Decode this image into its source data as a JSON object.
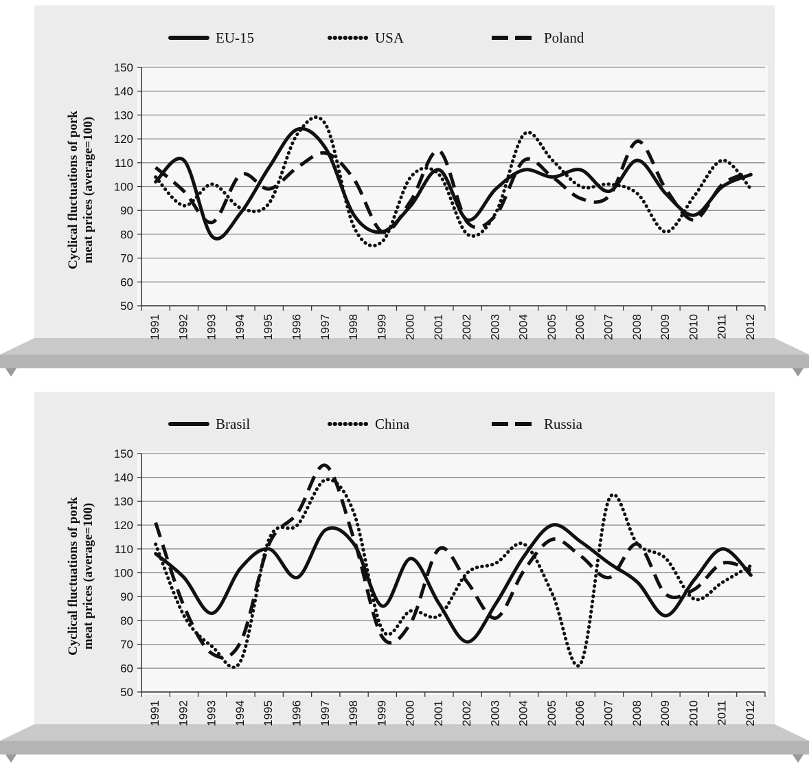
{
  "chart_data": [
    {
      "type": "line",
      "title": "",
      "xlabel": "",
      "ylabel": [
        "Cyclical fluctuations of pork",
        "meat prices (average=100)"
      ],
      "ylim": [
        50,
        150
      ],
      "yticks": [
        50,
        60,
        70,
        80,
        90,
        100,
        110,
        120,
        130,
        140,
        150
      ],
      "x": [
        "1991",
        "1992",
        "1993",
        "1994",
        "1995",
        "1996",
        "1997",
        "1998",
        "1999",
        "2000",
        "2001",
        "2002",
        "2003",
        "2004",
        "2005",
        "2006",
        "2007",
        "2008",
        "2009",
        "2010",
        "2011",
        "2012"
      ],
      "grid": true,
      "legend_position": "top",
      "series": [
        {
          "name": "EU-15",
          "style": "solid",
          "values": [
            102,
            111,
            79,
            89,
            108,
            124,
            116,
            88,
            81,
            92,
            107,
            86,
            99,
            107,
            104,
            107,
            98,
            111,
            97,
            88,
            100,
            105
          ]
        },
        {
          "name": "USA",
          "style": "dotted",
          "values": [
            104,
            92,
            101,
            91,
            93,
            122,
            126,
            83,
            77,
            104,
            105,
            80,
            89,
            122,
            111,
            100,
            101,
            97,
            81,
            96,
            111,
            99
          ]
        },
        {
          "name": "Poland",
          "style": "dashed",
          "values": [
            108,
            98,
            85,
            105,
            99,
            108,
            114,
            103,
            81,
            94,
            115,
            85,
            88,
            111,
            104,
            95,
            96,
            119,
            99,
            86,
            101,
            106
          ]
        }
      ]
    },
    {
      "type": "line",
      "title": "",
      "xlabel": "",
      "ylabel": [
        "Cyclical fluctuations of pork",
        "meat prices (average=100)"
      ],
      "ylim": [
        50,
        150
      ],
      "yticks": [
        50,
        60,
        70,
        80,
        90,
        100,
        110,
        120,
        130,
        140,
        150
      ],
      "x": [
        "1991",
        "1992",
        "1993",
        "1994",
        "1995",
        "1996",
        "1997",
        "1998",
        "1999",
        "2000",
        "2001",
        "2002",
        "2003",
        "2004",
        "2005",
        "2006",
        "2007",
        "2008",
        "2009",
        "2010",
        "2011",
        "2012"
      ],
      "grid": true,
      "legend_position": "top",
      "series": [
        {
          "name": "Brasil",
          "style": "solid",
          "values": [
            108,
            98,
            83,
            102,
            110,
            98,
            118,
            112,
            86,
            106,
            87,
            71,
            87,
            107,
            120,
            113,
            104,
            96,
            82,
            97,
            110,
            99
          ]
        },
        {
          "name": "China",
          "style": "dotted",
          "values": [
            112,
            82,
            69,
            63,
            114,
            120,
            139,
            125,
            76,
            84,
            82,
            100,
            104,
            112,
            91,
            62,
            131,
            112,
            106,
            89,
            96,
            103
          ]
        },
        {
          "name": "Russia",
          "style": "dashed",
          "values": [
            121,
            86,
            66,
            71,
            112,
            125,
            145,
            114,
            73,
            79,
            110,
            96,
            81,
            101,
            114,
            107,
            98,
            112,
            91,
            93,
            104,
            101
          ]
        }
      ]
    }
  ]
}
